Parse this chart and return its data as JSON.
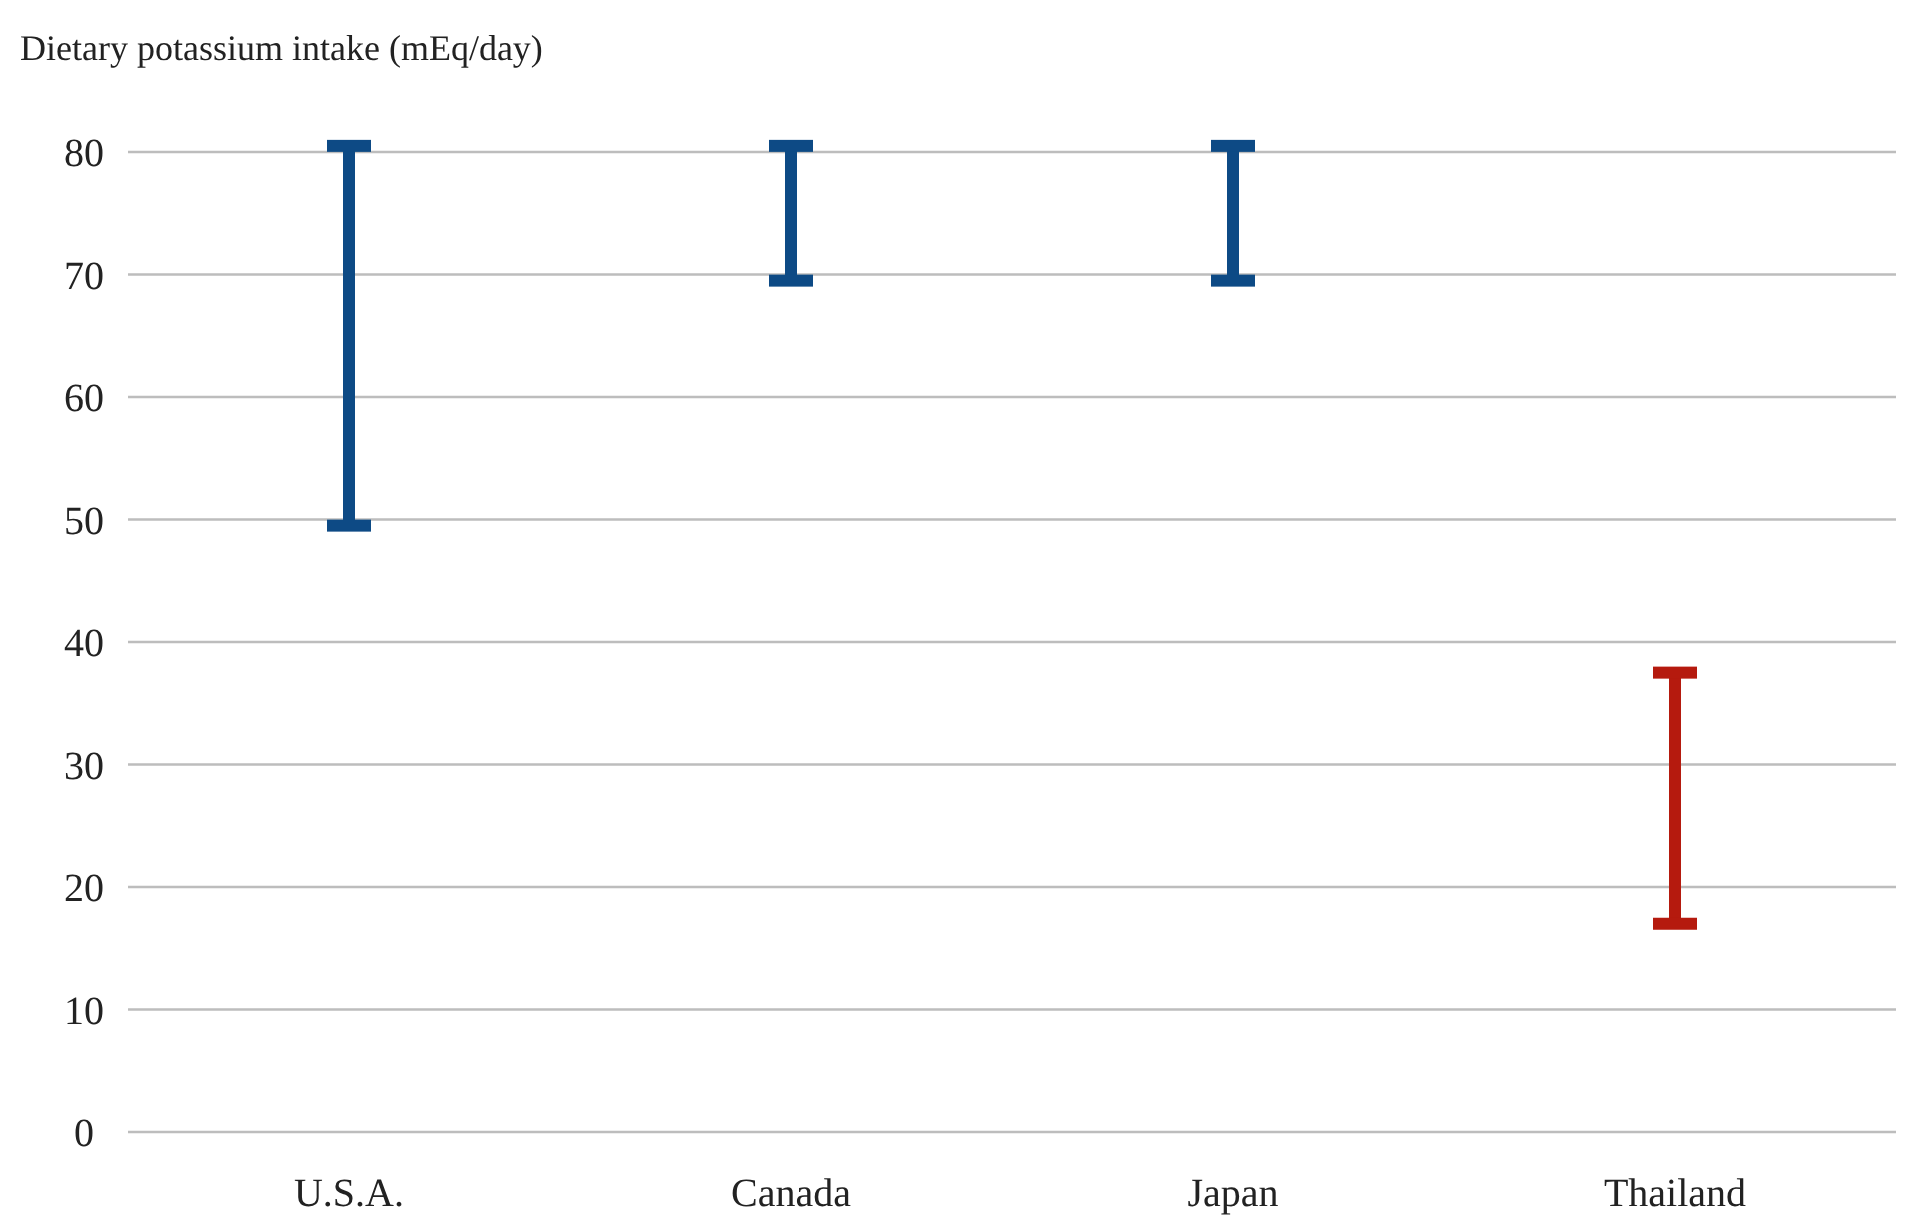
{
  "chart_data": {
    "type": "bar",
    "ylabel": "Dietary potassium intake (mEq/day)",
    "categories": [
      "U.S.A.",
      "Canada",
      "Japan",
      "Thailand"
    ],
    "base": [
      49.5,
      69.5,
      69.5,
      17
    ],
    "values": [
      31,
      11,
      11,
      20.5
    ],
    "colors": [
      "#0d4a85",
      "#0d4a85",
      "#0d4a85",
      "#b51a0e"
    ],
    "ylim": [
      0,
      80
    ],
    "yticks": [
      0,
      10,
      20,
      30,
      40,
      50,
      60,
      70,
      80
    ],
    "grid": "y"
  }
}
